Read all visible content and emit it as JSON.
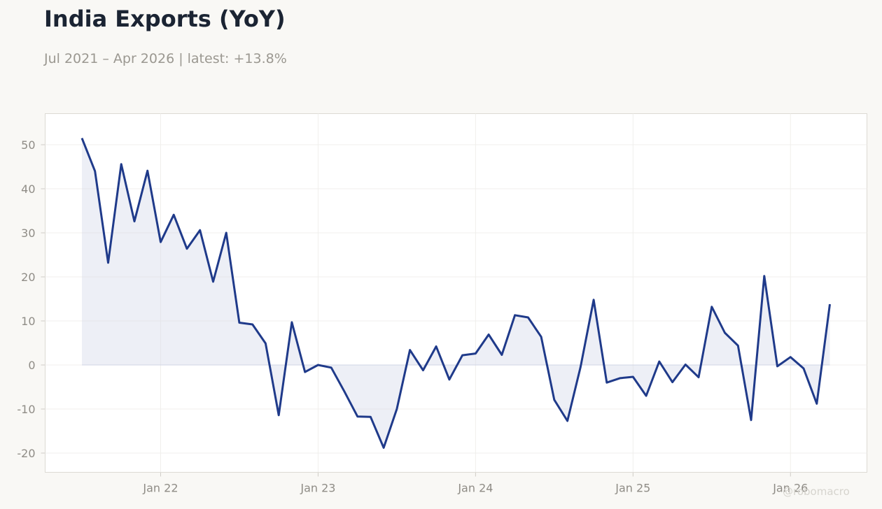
{
  "header": {
    "title": "India Exports (YoY)",
    "subtitle": "Jul 2021 – Apr 2026 | latest: +13.8%"
  },
  "watermark": "@robomacro",
  "chart_data": {
    "type": "area",
    "title": "India Exports (YoY)",
    "subtitle": "Jul 2021 – Apr 2026 | latest: +13.8%",
    "xlabel": "",
    "ylabel": "",
    "ylim": [
      -25,
      57
    ],
    "yticks": [
      -20,
      -10,
      0,
      10,
      20,
      30,
      40,
      50
    ],
    "xticks": [
      {
        "label": "Jan 22",
        "date": "2022-01"
      },
      {
        "label": "Jan 23",
        "date": "2023-01"
      },
      {
        "label": "Jan 24",
        "date": "2024-01"
      },
      {
        "label": "Jan 25",
        "date": "2025-01"
      },
      {
        "label": "Jan 26",
        "date": "2026-01"
      }
    ],
    "grid": true,
    "line_color": "#1f3a8a",
    "fill_color": "#d7dbea",
    "x": [
      "2021-07",
      "2021-08",
      "2021-09",
      "2021-10",
      "2021-11",
      "2021-12",
      "2022-01",
      "2022-02",
      "2022-03",
      "2022-04",
      "2022-05",
      "2022-06",
      "2022-07",
      "2022-08",
      "2022-09",
      "2022-10",
      "2022-11",
      "2022-12",
      "2023-01",
      "2023-02",
      "2023-03",
      "2023-04",
      "2023-05",
      "2023-06",
      "2023-07",
      "2023-08",
      "2023-09",
      "2023-10",
      "2023-11",
      "2023-12",
      "2024-01",
      "2024-02",
      "2024-03",
      "2024-04",
      "2024-05",
      "2024-06",
      "2024-07",
      "2024-08",
      "2024-09",
      "2024-10",
      "2024-11",
      "2024-12",
      "2025-01",
      "2025-02",
      "2025-03",
      "2025-04",
      "2025-05",
      "2025-06",
      "2025-07",
      "2025-08",
      "2025-09",
      "2025-10",
      "2025-11",
      "2025-12",
      "2026-01",
      "2026-02",
      "2026-03",
      "2026-04"
    ],
    "values": [
      51.5,
      44.0,
      23.2,
      45.6,
      32.6,
      44.1,
      27.9,
      34.1,
      26.4,
      30.6,
      18.9,
      30.0,
      9.6,
      9.2,
      4.9,
      -11.4,
      9.7,
      -1.6,
      0.0,
      -0.6,
      -6.0,
      -11.7,
      -11.8,
      -18.8,
      -10.0,
      3.4,
      -1.2,
      4.2,
      -3.3,
      2.2,
      2.6,
      6.9,
      2.3,
      11.3,
      10.8,
      6.4,
      -7.9,
      -12.7,
      -0.5,
      14.8,
      -4.0,
      -3.0,
      -2.7,
      -7.0,
      0.8,
      -3.9,
      0.1,
      -2.8,
      13.2,
      7.3,
      4.4,
      -12.5,
      20.2,
      -0.3,
      1.8,
      -0.8,
      -8.8,
      13.8
    ]
  }
}
